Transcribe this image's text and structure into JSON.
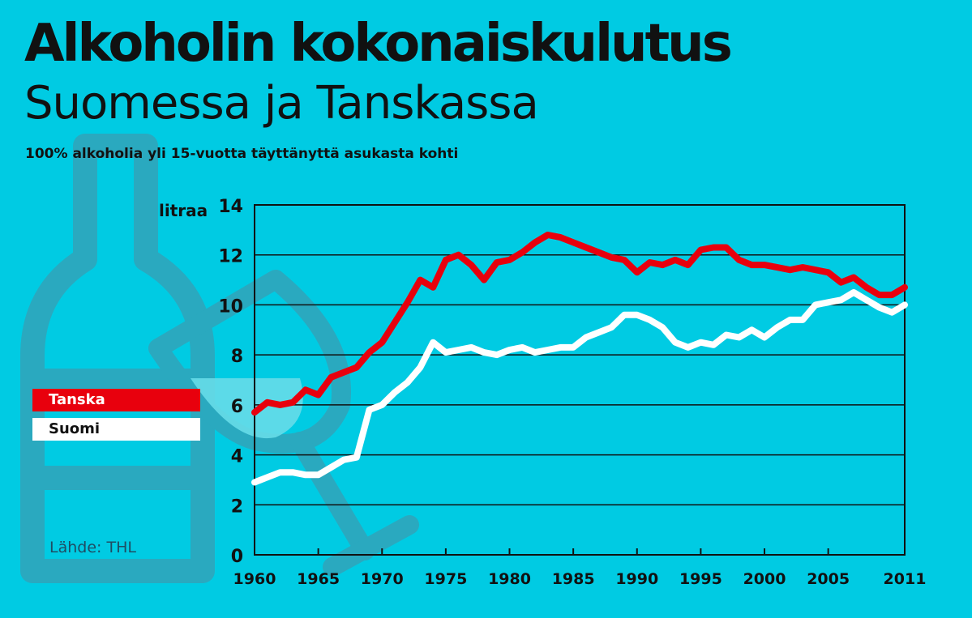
{
  "title": "Alkoholin kokonaiskulutus",
  "subtitle": "Suomessa ja Tanskassa",
  "caption": "100% alkoholia yli 15-vuotta täyttänyttä asukasta kohti",
  "source": "Lähde: THL",
  "colors": {
    "background": "#00cbe3",
    "tanska": "#e8000d",
    "suomi": "#ffffff",
    "grid": "#111111",
    "decoration": "#2aa9bf"
  },
  "chart_data": {
    "type": "line",
    "title": "Alkoholin kokonaiskulutus Suomessa ja Tanskassa",
    "ylabel": "litraa",
    "xlabel": "",
    "ylim": [
      0,
      14
    ],
    "xlim": [
      1960,
      2011
    ],
    "yticks": [
      0,
      2,
      4,
      6,
      8,
      10,
      12,
      14
    ],
    "xticks": [
      1960,
      1965,
      1970,
      1975,
      1980,
      1985,
      1990,
      1995,
      2000,
      2005,
      2011
    ],
    "grid": "horizontal",
    "legend": "left",
    "x": [
      1960,
      1961,
      1962,
      1963,
      1964,
      1965,
      1966,
      1967,
      1968,
      1969,
      1970,
      1971,
      1972,
      1973,
      1974,
      1975,
      1976,
      1977,
      1978,
      1979,
      1980,
      1981,
      1982,
      1983,
      1984,
      1985,
      1986,
      1987,
      1988,
      1989,
      1990,
      1991,
      1992,
      1993,
      1994,
      1995,
      1996,
      1997,
      1998,
      1999,
      2000,
      2001,
      2002,
      2003,
      2004,
      2005,
      2006,
      2007,
      2008,
      2009,
      2010,
      2011
    ],
    "series": [
      {
        "name": "Tanska",
        "color": "#e8000d",
        "values": [
          5.7,
          6.1,
          6.0,
          6.1,
          6.6,
          6.4,
          7.1,
          7.3,
          7.5,
          8.1,
          8.5,
          9.3,
          10.1,
          11.0,
          10.7,
          11.8,
          12.0,
          11.6,
          11.0,
          11.7,
          11.8,
          12.1,
          12.5,
          12.8,
          12.7,
          12.5,
          12.3,
          12.1,
          11.9,
          11.8,
          11.3,
          11.7,
          11.6,
          11.8,
          11.6,
          12.2,
          12.3,
          12.3,
          11.8,
          11.6,
          11.6,
          11.5,
          11.4,
          11.5,
          11.4,
          11.3,
          10.9,
          11.1,
          10.7,
          10.4,
          10.4,
          10.7
        ]
      },
      {
        "name": "Suomi",
        "color": "#ffffff",
        "values": [
          2.9,
          3.1,
          3.3,
          3.3,
          3.2,
          3.2,
          3.5,
          3.8,
          3.9,
          5.8,
          6.0,
          6.5,
          6.9,
          7.5,
          8.5,
          8.1,
          8.2,
          8.3,
          8.1,
          8.0,
          8.2,
          8.3,
          8.1,
          8.2,
          8.3,
          8.3,
          8.7,
          8.9,
          9.1,
          9.6,
          9.6,
          9.4,
          9.1,
          8.5,
          8.3,
          8.5,
          8.4,
          8.8,
          8.7,
          9.0,
          8.7,
          9.1,
          9.4,
          9.4,
          10.0,
          10.1,
          10.2,
          10.5,
          10.2,
          9.9,
          9.7,
          10.0
        ]
      }
    ]
  }
}
